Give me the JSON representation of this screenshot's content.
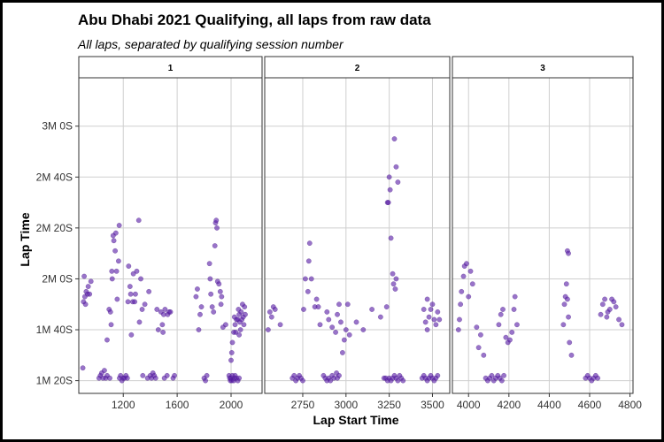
{
  "chart_data": {
    "type": "scatter",
    "title": "Abu Dhabi 2021 Qualifying, all laps from raw data",
    "subtitle": "All laps, separated by qualifying session number",
    "xlabel": "Lap Start Time",
    "ylabel": "Lap Time",
    "point_color": "#5B1FA8",
    "ylim": [
      75,
      199
    ],
    "y_ticks": [
      80,
      100,
      120,
      140,
      160,
      180
    ],
    "y_tick_labels": [
      "1M 20S",
      "1M 40S",
      "2M 0S",
      "2M 20S",
      "2M 40S",
      "3M 0S"
    ],
    "panels": [
      {
        "label": "1",
        "xlim": [
          870,
          2230
        ],
        "x_ticks": [
          1200,
          1600,
          2000
        ],
        "x_tick_labels": [
          "1200",
          "1600",
          "2000"
        ],
        "points": [
          [
            900,
            85
          ],
          [
            905,
            111
          ],
          [
            910,
            121
          ],
          [
            915,
            113
          ],
          [
            920,
            110
          ],
          [
            925,
            115
          ],
          [
            935,
            114
          ],
          [
            940,
            117
          ],
          [
            950,
            114
          ],
          [
            960,
            119
          ],
          [
            1020,
            81
          ],
          [
            1030,
            82
          ],
          [
            1040,
            83
          ],
          [
            1050,
            81
          ],
          [
            1060,
            84
          ],
          [
            1070,
            81
          ],
          [
            1080,
            82
          ],
          [
            1100,
            81
          ],
          [
            1080,
            96
          ],
          [
            1095,
            108
          ],
          [
            1105,
            107
          ],
          [
            1110,
            102
          ],
          [
            1115,
            123
          ],
          [
            1118,
            120
          ],
          [
            1125,
            137
          ],
          [
            1130,
            135
          ],
          [
            1140,
            131
          ],
          [
            1145,
            138
          ],
          [
            1150,
            123
          ],
          [
            1155,
            112
          ],
          [
            1165,
            127
          ],
          [
            1170,
            141
          ],
          [
            1172,
            81
          ],
          [
            1180,
            82
          ],
          [
            1190,
            80
          ],
          [
            1200,
            81
          ],
          [
            1210,
            81
          ],
          [
            1220,
            82
          ],
          [
            1230,
            81
          ],
          [
            1235,
            111
          ],
          [
            1240,
            125
          ],
          [
            1250,
            117
          ],
          [
            1255,
            114
          ],
          [
            1260,
            98
          ],
          [
            1270,
            111
          ],
          [
            1275,
            122
          ],
          [
            1285,
            111
          ],
          [
            1290,
            114
          ],
          [
            1300,
            123
          ],
          [
            1315,
            143
          ],
          [
            1320,
            103
          ],
          [
            1330,
            120
          ],
          [
            1340,
            108
          ],
          [
            1345,
            82
          ],
          [
            1360,
            110
          ],
          [
            1380,
            81
          ],
          [
            1390,
            115
          ],
          [
            1400,
            82
          ],
          [
            1410,
            81
          ],
          [
            1420,
            83
          ],
          [
            1430,
            82
          ],
          [
            1440,
            81
          ],
          [
            1450,
            108
          ],
          [
            1460,
            100
          ],
          [
            1480,
            107
          ],
          [
            1490,
            102
          ],
          [
            1495,
            99
          ],
          [
            1500,
            106
          ],
          [
            1505,
            81
          ],
          [
            1510,
            108
          ],
          [
            1530,
            106
          ],
          [
            1540,
            107
          ],
          [
            1550,
            107
          ],
          [
            1525,
            82
          ],
          [
            1570,
            81
          ],
          [
            1580,
            82
          ],
          [
            1740,
            113
          ],
          [
            1750,
            116
          ],
          [
            1760,
            100
          ],
          [
            1770,
            106
          ],
          [
            1780,
            109
          ],
          [
            1800,
            81
          ],
          [
            1810,
            80
          ],
          [
            1820,
            82
          ],
          [
            1840,
            126
          ],
          [
            1845,
            120
          ],
          [
            1850,
            114
          ],
          [
            1860,
            109
          ],
          [
            1870,
            107
          ],
          [
            1880,
            133
          ],
          [
            1885,
            142
          ],
          [
            1890,
            143
          ],
          [
            1895,
            140
          ],
          [
            1900,
            119
          ],
          [
            1910,
            118
          ],
          [
            1920,
            115
          ],
          [
            1925,
            110
          ],
          [
            1930,
            113
          ],
          [
            1940,
            101
          ],
          [
            1960,
            102
          ],
          [
            1985,
            82
          ],
          [
            1990,
            81
          ],
          [
            1995,
            80
          ],
          [
            2000,
            81
          ],
          [
            2005,
            80
          ],
          [
            2010,
            82
          ],
          [
            2020,
            80
          ],
          [
            2025,
            81
          ],
          [
            2030,
            82
          ],
          [
            2040,
            81
          ],
          [
            2050,
            80
          ],
          [
            2060,
            81
          ],
          [
            2000,
            88
          ],
          [
            2005,
            91
          ],
          [
            2010,
            95
          ],
          [
            2020,
            99
          ],
          [
            2025,
            105
          ],
          [
            2030,
            102
          ],
          [
            2035,
            99
          ],
          [
            2040,
            104
          ],
          [
            2050,
            104
          ],
          [
            2055,
            108
          ],
          [
            2060,
            106
          ],
          [
            2065,
            103
          ],
          [
            2075,
            107
          ],
          [
            2080,
            104
          ],
          [
            2085,
            110
          ],
          [
            2090,
            105
          ],
          [
            2095,
            102
          ],
          [
            2100,
            109
          ],
          [
            2105,
            106
          ],
          [
            2060,
            98
          ],
          [
            2070,
            100
          ]
        ]
      },
      {
        "label": "2",
        "xlim": [
          2530,
          3600
        ],
        "x_ticks": [
          2750,
          3000,
          3250,
          3500
        ],
        "x_tick_labels": [
          "2750",
          "3000",
          "3250",
          "3500"
        ],
        "points": [
          [
            2550,
            100
          ],
          [
            2560,
            107
          ],
          [
            2570,
            105
          ],
          [
            2580,
            109
          ],
          [
            2590,
            108
          ],
          [
            2620,
            102
          ],
          [
            2690,
            81
          ],
          [
            2700,
            82
          ],
          [
            2710,
            80
          ],
          [
            2720,
            81
          ],
          [
            2730,
            82
          ],
          [
            2740,
            81
          ],
          [
            2750,
            80
          ],
          [
            2755,
            108
          ],
          [
            2765,
            120
          ],
          [
            2780,
            115
          ],
          [
            2785,
            127
          ],
          [
            2790,
            134
          ],
          [
            2800,
            120
          ],
          [
            2820,
            109
          ],
          [
            2830,
            112
          ],
          [
            2840,
            109
          ],
          [
            2850,
            102
          ],
          [
            2870,
            82
          ],
          [
            2880,
            81
          ],
          [
            2890,
            80
          ],
          [
            2900,
            81
          ],
          [
            2910,
            80
          ],
          [
            2920,
            82
          ],
          [
            2930,
            81
          ],
          [
            2945,
            83
          ],
          [
            2950,
            81
          ],
          [
            2960,
            82
          ],
          [
            2890,
            107
          ],
          [
            2900,
            104
          ],
          [
            2920,
            101
          ],
          [
            2940,
            99
          ],
          [
            2950,
            106
          ],
          [
            2960,
            110
          ],
          [
            2970,
            103
          ],
          [
            2980,
            91
          ],
          [
            2990,
            96
          ],
          [
            3000,
            100
          ],
          [
            3010,
            110
          ],
          [
            3020,
            98
          ],
          [
            3060,
            103
          ],
          [
            3100,
            100
          ],
          [
            3150,
            108
          ],
          [
            3200,
            105
          ],
          [
            3235,
            109
          ],
          [
            3240,
            150
          ],
          [
            3245,
            150
          ],
          [
            3250,
            160
          ],
          [
            3255,
            155
          ],
          [
            3260,
            136
          ],
          [
            3270,
            122
          ],
          [
            3280,
            175
          ],
          [
            3290,
            164
          ],
          [
            3300,
            158
          ],
          [
            3275,
            118
          ],
          [
            3285,
            116
          ],
          [
            3290,
            120
          ],
          [
            3220,
            81
          ],
          [
            3230,
            81
          ],
          [
            3240,
            80
          ],
          [
            3250,
            81
          ],
          [
            3260,
            80
          ],
          [
            3270,
            81
          ],
          [
            3280,
            82
          ],
          [
            3290,
            81
          ],
          [
            3300,
            80
          ],
          [
            3310,
            82
          ],
          [
            3320,
            81
          ],
          [
            3330,
            80
          ],
          [
            3440,
            81
          ],
          [
            3450,
            82
          ],
          [
            3460,
            81
          ],
          [
            3470,
            80
          ],
          [
            3480,
            81
          ],
          [
            3490,
            82
          ],
          [
            3500,
            81
          ],
          [
            3510,
            80
          ],
          [
            3520,
            81
          ],
          [
            3530,
            82
          ],
          [
            3450,
            108
          ],
          [
            3460,
            103
          ],
          [
            3470,
            100
          ],
          [
            3480,
            105
          ],
          [
            3490,
            108
          ],
          [
            3500,
            110
          ],
          [
            3510,
            104
          ],
          [
            3520,
            102
          ],
          [
            3530,
            107
          ],
          [
            3540,
            104
          ],
          [
            3470,
            112
          ]
        ]
      },
      {
        "label": "3",
        "xlim": [
          3920,
          4815
        ],
        "x_ticks": [
          4000,
          4200,
          4400,
          4600,
          4800
        ],
        "x_tick_labels": [
          "4000",
          "4200",
          "4400",
          "4600",
          "4800"
        ],
        "points": [
          [
            3950,
            100
          ],
          [
            3955,
            104
          ],
          [
            3960,
            110
          ],
          [
            3965,
            115
          ],
          [
            3975,
            121
          ],
          [
            3980,
            125
          ],
          [
            3990,
            126
          ],
          [
            4000,
            113
          ],
          [
            4010,
            123
          ],
          [
            4020,
            118
          ],
          [
            4040,
            101
          ],
          [
            4050,
            93
          ],
          [
            4060,
            98
          ],
          [
            4075,
            90
          ],
          [
            4085,
            81
          ],
          [
            4095,
            80
          ],
          [
            4105,
            81
          ],
          [
            4115,
            82
          ],
          [
            4125,
            80
          ],
          [
            4135,
            81
          ],
          [
            4145,
            82
          ],
          [
            4155,
            81
          ],
          [
            4165,
            80
          ],
          [
            4175,
            82
          ],
          [
            4150,
            102
          ],
          [
            4160,
            106
          ],
          [
            4170,
            108
          ],
          [
            4185,
            97
          ],
          [
            4195,
            95
          ],
          [
            4205,
            96
          ],
          [
            4215,
            99
          ],
          [
            4225,
            108
          ],
          [
            4230,
            113
          ],
          [
            4240,
            102
          ],
          [
            4470,
            102
          ],
          [
            4475,
            110
          ],
          [
            4480,
            113
          ],
          [
            4485,
            118
          ],
          [
            4490,
            112
          ],
          [
            4495,
            105
          ],
          [
            4500,
            95
          ],
          [
            4490,
            131
          ],
          [
            4495,
            130
          ],
          [
            4510,
            90
          ],
          [
            4580,
            81
          ],
          [
            4590,
            82
          ],
          [
            4600,
            81
          ],
          [
            4610,
            80
          ],
          [
            4620,
            81
          ],
          [
            4630,
            82
          ],
          [
            4640,
            81
          ],
          [
            4655,
            106
          ],
          [
            4665,
            110
          ],
          [
            4675,
            112
          ],
          [
            4685,
            105
          ],
          [
            4690,
            107
          ],
          [
            4700,
            108
          ],
          [
            4710,
            112
          ],
          [
            4720,
            111
          ],
          [
            4730,
            109
          ],
          [
            4745,
            104
          ],
          [
            4760,
            102
          ]
        ]
      }
    ]
  }
}
